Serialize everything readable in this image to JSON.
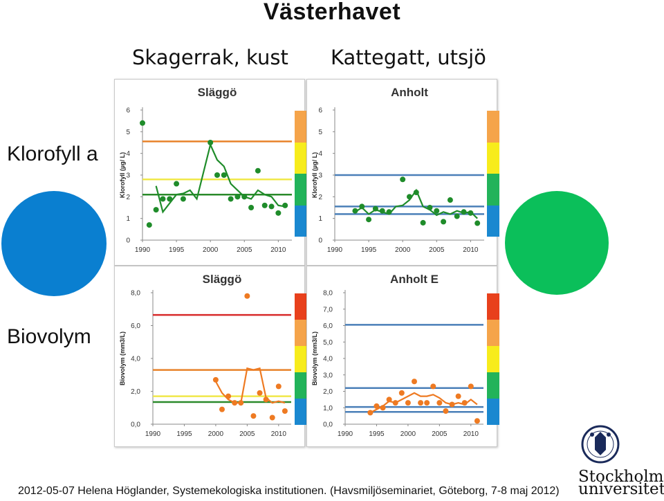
{
  "slide": {
    "title": "Västerhavet",
    "col1": "Skagerrak, kust",
    "col2": "Kattegatt, utsjö",
    "row1": "Klorofyll a",
    "row2": "Biovolym",
    "footer": "2012-05-07 Helena Höglander, Systemekologiska institutionen. (Havsmiljöseminariet, Göteborg, 7-8 maj 2012)",
    "logo_line1": "Stockholms",
    "logo_line2": "universitet",
    "status_colors": {
      "klorofyll_skagerrak": "#0a7fd0",
      "klorofyll_kattegatt": "#0bbf5a"
    }
  },
  "chart_data": [
    {
      "type": "scatter",
      "title": "Släggö",
      "ylabel": "Klorofyll (µg/ L)",
      "xlim": [
        1990,
        2012
      ],
      "ylim": [
        0,
        6
      ],
      "xticks": [
        1990,
        1995,
        2000,
        2005,
        2010
      ],
      "yticks": [
        0,
        1,
        2,
        3,
        4,
        5,
        6
      ],
      "ytick_labels": [
        "0",
        "1",
        "2",
        "3",
        "4",
        "5",
        "6"
      ],
      "grid": false,
      "color": "#1f8c2a",
      "points": [
        [
          1990,
          5.4
        ],
        [
          1991,
          0.7
        ],
        [
          1992,
          1.4
        ],
        [
          1993,
          1.9
        ],
        [
          1994,
          1.9
        ],
        [
          1995,
          2.6
        ],
        [
          1996,
          1.9
        ],
        [
          2000,
          4.5
        ],
        [
          2001,
          3.0
        ],
        [
          2002,
          3.0
        ],
        [
          2003,
          1.9
        ],
        [
          2004,
          2.0
        ],
        [
          2005,
          2.0
        ],
        [
          2006,
          1.5
        ],
        [
          2007,
          3.2
        ],
        [
          2008,
          1.6
        ],
        [
          2009,
          1.55
        ],
        [
          2010,
          1.25
        ],
        [
          2011,
          1.6
        ]
      ],
      "trend": [
        [
          1992,
          2.5
        ],
        [
          1993,
          1.3
        ],
        [
          1994,
          1.7
        ],
        [
          1995,
          2.1
        ],
        [
          1996,
          2.15
        ],
        [
          1997,
          2.3
        ],
        [
          1998,
          1.9
        ],
        [
          2000,
          4.4
        ],
        [
          2001,
          3.7
        ],
        [
          2002,
          3.4
        ],
        [
          2003,
          2.6
        ],
        [
          2004,
          2.3
        ],
        [
          2005,
          2.0
        ],
        [
          2006,
          1.9
        ],
        [
          2007,
          2.3
        ],
        [
          2008,
          2.1
        ],
        [
          2009,
          2.0
        ],
        [
          2010,
          1.6
        ],
        [
          2011,
          1.55
        ]
      ],
      "ref_lines": [
        {
          "y": 4.55,
          "color": "#e8822a"
        },
        {
          "y": 2.8,
          "color": "#f0e84a"
        },
        {
          "y": 2.1,
          "color": "#2a8a2a"
        }
      ],
      "scale": [
        "#f5a44a",
        "#f7ec1c",
        "#22b35a",
        "#1a88d0"
      ]
    },
    {
      "type": "scatter",
      "title": "Anholt",
      "ylabel": "Klorofyll (µg/ L)",
      "xlim": [
        1990,
        2012
      ],
      "ylim": [
        0,
        6
      ],
      "xticks": [
        1990,
        1995,
        2000,
        2005,
        2010
      ],
      "yticks": [
        0,
        1,
        2,
        3,
        4,
        5,
        6
      ],
      "ytick_labels": [
        "0",
        "1",
        "2",
        "3",
        "4",
        "5",
        "6"
      ],
      "grid": false,
      "color": "#1f8c2a",
      "points": [
        [
          1993,
          1.35
        ],
        [
          1994,
          1.55
        ],
        [
          1995,
          0.95
        ],
        [
          1996,
          1.45
        ],
        [
          1997,
          1.35
        ],
        [
          1998,
          1.3
        ],
        [
          2000,
          2.8
        ],
        [
          2001,
          2.0
        ],
        [
          2002,
          2.2
        ],
        [
          2003,
          0.8
        ],
        [
          2004,
          1.5
        ],
        [
          2005,
          1.35
        ],
        [
          2006,
          0.85
        ],
        [
          2007,
          1.85
        ],
        [
          2008,
          1.1
        ],
        [
          2009,
          1.3
        ],
        [
          2010,
          1.25
        ],
        [
          2011,
          0.78
        ]
      ],
      "trend": [
        [
          1993,
          1.3
        ],
        [
          1994,
          1.5
        ],
        [
          1995,
          1.2
        ],
        [
          1996,
          1.4
        ],
        [
          1997,
          1.3
        ],
        [
          1998,
          1.2
        ],
        [
          1999,
          1.55
        ],
        [
          2000,
          1.6
        ],
        [
          2001,
          1.85
        ],
        [
          2002,
          2.3
        ],
        [
          2003,
          1.55
        ],
        [
          2004,
          1.4
        ],
        [
          2005,
          1.15
        ],
        [
          2006,
          1.3
        ],
        [
          2007,
          1.2
        ],
        [
          2008,
          1.35
        ],
        [
          2009,
          1.25
        ],
        [
          2010,
          1.3
        ],
        [
          2011,
          1.0
        ]
      ],
      "ref_lines": [
        {
          "y": 3.0,
          "color": "#4a7fb8"
        },
        {
          "y": 1.55,
          "color": "#4a7fb8"
        },
        {
          "y": 1.2,
          "color": "#4a7fb8"
        }
      ],
      "scale": [
        "#f5a44a",
        "#f7ec1c",
        "#22b35a",
        "#1a88d0"
      ]
    },
    {
      "type": "scatter",
      "title": "Släggö",
      "ylabel": "Biovolym (mm3/L)",
      "xlim": [
        1990,
        2012
      ],
      "ylim": [
        0,
        8
      ],
      "xticks": [
        1990,
        1995,
        2000,
        2005,
        2010
      ],
      "yticks": [
        0,
        2,
        4,
        6,
        8
      ],
      "ytick_labels": [
        "0,0",
        "2,0",
        "4,0",
        "6,0",
        "8,0"
      ],
      "grid": false,
      "color": "#ee7a22",
      "points": [
        [
          2000,
          2.7
        ],
        [
          2001,
          0.9
        ],
        [
          2002,
          1.7
        ],
        [
          2003,
          1.3
        ],
        [
          2004,
          1.3
        ],
        [
          2005,
          7.8
        ],
        [
          2006,
          0.5
        ],
        [
          2007,
          1.9
        ],
        [
          2008,
          1.5
        ],
        [
          2009,
          0.4
        ],
        [
          2010,
          2.3
        ],
        [
          2011,
          0.8
        ]
      ],
      "trend": [
        [
          2000,
          2.6
        ],
        [
          2001,
          1.9
        ],
        [
          2002,
          1.5
        ],
        [
          2003,
          1.3
        ],
        [
          2004,
          1.3
        ],
        [
          2005,
          3.4
        ],
        [
          2006,
          3.3
        ],
        [
          2007,
          3.4
        ],
        [
          2008,
          1.6
        ],
        [
          2009,
          1.3
        ],
        [
          2010,
          1.4
        ],
        [
          2011,
          1.3
        ]
      ],
      "ref_lines": [
        {
          "y": 6.65,
          "color": "#d82a2a"
        },
        {
          "y": 3.3,
          "color": "#e8822a"
        },
        {
          "y": 1.7,
          "color": "#f0e84a"
        },
        {
          "y": 1.35,
          "color": "#2a8a2a"
        }
      ],
      "scale": [
        "#e8401c",
        "#f5a44a",
        "#f7ec1c",
        "#22b35a",
        "#1a88d0"
      ]
    },
    {
      "type": "scatter",
      "title": "Anholt E",
      "ylabel": "Biovolym (mm3/L)",
      "xlim": [
        1990,
        2012
      ],
      "ylim": [
        0,
        8
      ],
      "xticks": [
        1990,
        1995,
        2000,
        2005,
        2010
      ],
      "yticks": [
        0,
        1,
        2,
        3,
        4,
        5,
        6,
        7,
        8
      ],
      "ytick_labels": [
        "0,0",
        "1,0",
        "2,0",
        "3,0",
        "4,0",
        "5,0",
        "6,0",
        "7,0",
        "8,0"
      ],
      "grid": false,
      "color": "#ee7a22",
      "points": [
        [
          1994,
          0.7
        ],
        [
          1995,
          1.1
        ],
        [
          1996,
          1.0
        ],
        [
          1997,
          1.5
        ],
        [
          1998,
          1.3
        ],
        [
          1999,
          1.9
        ],
        [
          2000,
          1.3
        ],
        [
          2001,
          2.6
        ],
        [
          2002,
          1.3
        ],
        [
          2003,
          1.3
        ],
        [
          2004,
          2.3
        ],
        [
          2005,
          1.3
        ],
        [
          2006,
          0.8
        ],
        [
          2007,
          1.2
        ],
        [
          2008,
          1.7
        ],
        [
          2009,
          1.3
        ],
        [
          2010,
          2.3
        ],
        [
          2011,
          0.2
        ]
      ],
      "trend": [
        [
          1994,
          0.7
        ],
        [
          1995,
          0.9
        ],
        [
          1996,
          1.1
        ],
        [
          1997,
          1.4
        ],
        [
          1998,
          1.3
        ],
        [
          1999,
          1.5
        ],
        [
          2000,
          1.7
        ],
        [
          2001,
          1.9
        ],
        [
          2002,
          1.7
        ],
        [
          2003,
          1.7
        ],
        [
          2004,
          1.8
        ],
        [
          2005,
          1.6
        ],
        [
          2006,
          1.3
        ],
        [
          2007,
          1.2
        ],
        [
          2008,
          1.3
        ],
        [
          2009,
          1.2
        ],
        [
          2010,
          1.5
        ],
        [
          2011,
          1.2
        ]
      ],
      "ref_lines": [
        {
          "y": 6.05,
          "color": "#4a7fb8"
        },
        {
          "y": 2.2,
          "color": "#4a7fb8"
        },
        {
          "y": 1.05,
          "color": "#4a7fb8"
        },
        {
          "y": 0.75,
          "color": "#4a7fb8"
        }
      ],
      "scale": [
        "#e8401c",
        "#f5a44a",
        "#f7ec1c",
        "#22b35a",
        "#1a88d0"
      ]
    }
  ]
}
